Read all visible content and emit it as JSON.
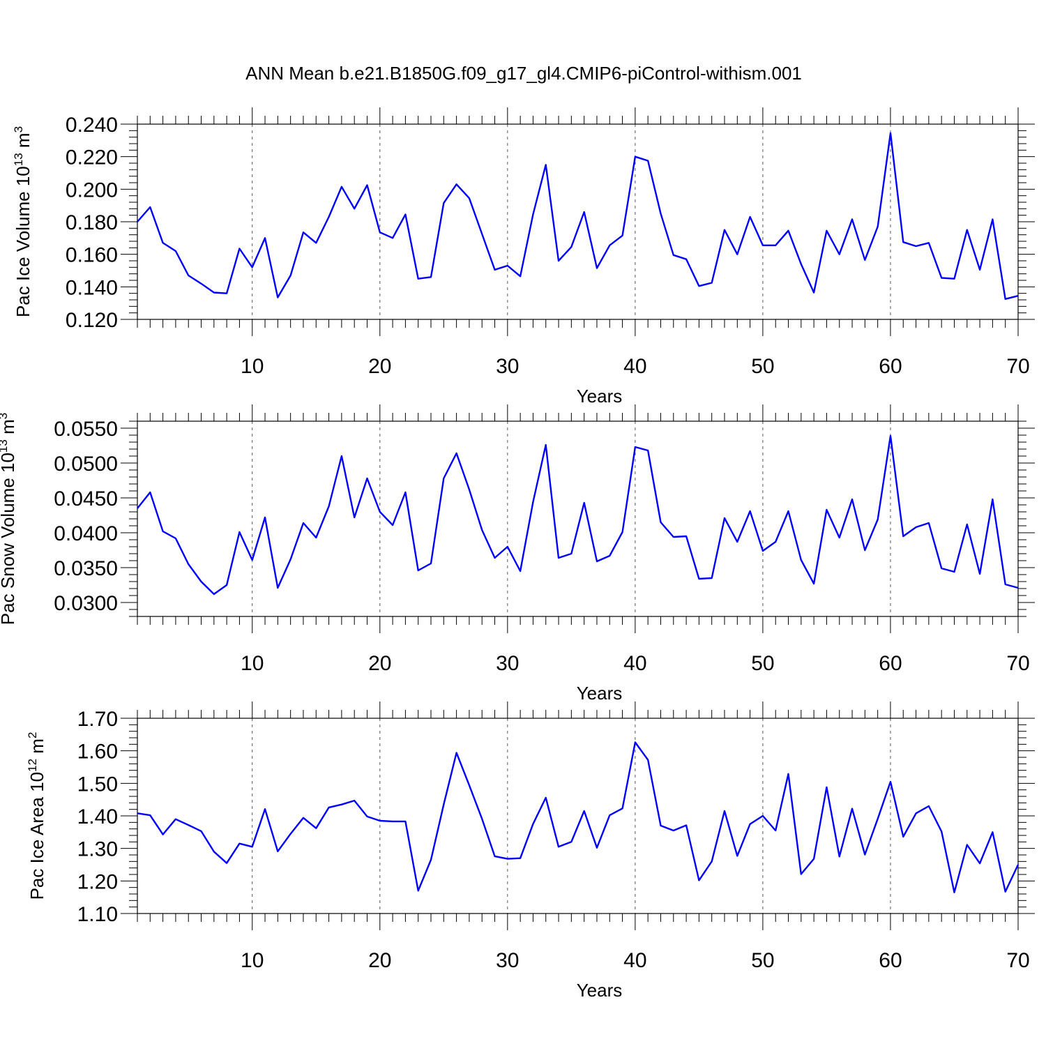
{
  "title": "ANN Mean b.e21.B1850G.f09_g17_gl4.CMIP6-piControl-withism.001",
  "chart_data": [
    {
      "type": "line",
      "ylabel_main": "Pac Ice Volume 10",
      "ylabel_exp": "13",
      "ylabel_unit": "m",
      "ylabel_unit_exp": "3",
      "xlabel": "Years",
      "xlim": [
        1,
        70
      ],
      "ylim": [
        0.12,
        0.24
      ],
      "yticks": [
        0.12,
        0.14,
        0.16,
        0.18,
        0.2,
        0.22,
        0.24
      ],
      "ytick_labels": [
        "0.120",
        "0.140",
        "0.160",
        "0.180",
        "0.200",
        "0.220",
        "0.240"
      ],
      "xticks": [
        10,
        20,
        30,
        40,
        50,
        60,
        70
      ],
      "xtick_labels": [
        "10",
        "20",
        "30",
        "40",
        "50",
        "60",
        "70"
      ],
      "x": [
        1,
        2,
        3,
        4,
        5,
        6,
        7,
        8,
        9,
        10,
        11,
        12,
        13,
        14,
        15,
        16,
        17,
        18,
        19,
        20,
        21,
        22,
        23,
        24,
        25,
        26,
        27,
        28,
        29,
        30,
        31,
        32,
        33,
        34,
        35,
        36,
        37,
        38,
        39,
        40,
        41,
        42,
        43,
        44,
        45,
        46,
        47,
        48,
        49,
        50,
        51,
        52,
        53,
        54,
        55,
        56,
        57,
        58,
        59,
        60,
        61,
        62,
        63,
        64,
        65,
        66,
        67,
        68,
        69,
        70
      ],
      "values": [
        0.18,
        0.189,
        0.167,
        0.162,
        0.147,
        0.142,
        0.1365,
        0.136,
        0.1635,
        0.152,
        0.17,
        0.1335,
        0.147,
        0.1735,
        0.167,
        0.183,
        0.2015,
        0.188,
        0.2025,
        0.1735,
        0.17,
        0.1845,
        0.145,
        0.146,
        0.1915,
        0.203,
        0.1945,
        0.1725,
        0.1505,
        0.153,
        0.1465,
        0.1845,
        0.215,
        0.156,
        0.1645,
        0.186,
        0.1515,
        0.1655,
        0.1715,
        0.22,
        0.2175,
        0.185,
        0.1595,
        0.157,
        0.1405,
        0.1425,
        0.175,
        0.16,
        0.183,
        0.1655,
        0.1655,
        0.1745,
        0.154,
        0.1365,
        0.1745,
        0.16,
        0.1815,
        0.1565,
        0.177,
        0.2345,
        0.1675,
        0.165,
        0.167,
        0.1455,
        0.145,
        0.175,
        0.1505,
        0.1815,
        0.1325,
        0.1345
      ]
    },
    {
      "type": "line",
      "ylabel_main": "Pac Snow Volume 10",
      "ylabel_exp": "13",
      "ylabel_unit": "m",
      "ylabel_unit_exp": "3",
      "xlabel": "Years",
      "xlim": [
        1,
        70
      ],
      "ylim": [
        0.028,
        0.056
      ],
      "yticks": [
        0.03,
        0.035,
        0.04,
        0.045,
        0.05,
        0.055
      ],
      "ytick_labels": [
        "0.0300",
        "0.0350",
        "0.0400",
        "0.0450",
        "0.0500",
        "0.0550"
      ],
      "xticks": [
        10,
        20,
        30,
        40,
        50,
        60,
        70
      ],
      "xtick_labels": [
        "10",
        "20",
        "30",
        "40",
        "50",
        "60",
        "70"
      ],
      "x": [
        1,
        2,
        3,
        4,
        5,
        6,
        7,
        8,
        9,
        10,
        11,
        12,
        13,
        14,
        15,
        16,
        17,
        18,
        19,
        20,
        21,
        22,
        23,
        24,
        25,
        26,
        27,
        28,
        29,
        30,
        31,
        32,
        33,
        34,
        35,
        36,
        37,
        38,
        39,
        40,
        41,
        42,
        43,
        44,
        45,
        46,
        47,
        48,
        49,
        50,
        51,
        52,
        53,
        54,
        55,
        56,
        57,
        58,
        59,
        60,
        61,
        62,
        63,
        64,
        65,
        66,
        67,
        68,
        69,
        70
      ],
      "values": [
        0.0435,
        0.0458,
        0.0402,
        0.0392,
        0.0355,
        0.033,
        0.0312,
        0.0325,
        0.0401,
        0.0361,
        0.0422,
        0.0321,
        0.0362,
        0.0414,
        0.0393,
        0.0438,
        0.051,
        0.0422,
        0.0478,
        0.043,
        0.0411,
        0.0458,
        0.0346,
        0.0356,
        0.0478,
        0.0514,
        0.0462,
        0.0404,
        0.0364,
        0.038,
        0.0345,
        0.0444,
        0.0526,
        0.0364,
        0.037,
        0.0443,
        0.0359,
        0.0367,
        0.0401,
        0.0523,
        0.0518,
        0.0415,
        0.0394,
        0.0395,
        0.0334,
        0.0335,
        0.0421,
        0.0387,
        0.0431,
        0.0374,
        0.0387,
        0.0431,
        0.0361,
        0.0327,
        0.0433,
        0.0393,
        0.0448,
        0.0375,
        0.0419,
        0.0539,
        0.0395,
        0.0408,
        0.0414,
        0.0349,
        0.0344,
        0.0412,
        0.0341,
        0.0448,
        0.0326,
        0.0321
      ]
    },
    {
      "type": "line",
      "ylabel_main": "Pac Ice Area 10",
      "ylabel_exp": "12",
      "ylabel_unit": "m",
      "ylabel_unit_exp": "2",
      "xlabel": "Years",
      "xlim": [
        1,
        70
      ],
      "ylim": [
        1.1,
        1.7
      ],
      "yticks": [
        1.1,
        1.2,
        1.3,
        1.4,
        1.5,
        1.6,
        1.7
      ],
      "ytick_labels": [
        "1.10",
        "1.20",
        "1.30",
        "1.40",
        "1.50",
        "1.60",
        "1.70"
      ],
      "xticks": [
        10,
        20,
        30,
        40,
        50,
        60,
        70
      ],
      "xtick_labels": [
        "10",
        "20",
        "30",
        "40",
        "50",
        "60",
        "70"
      ],
      "x": [
        1,
        2,
        3,
        4,
        5,
        6,
        7,
        8,
        9,
        10,
        11,
        12,
        13,
        14,
        15,
        16,
        17,
        18,
        19,
        20,
        21,
        22,
        23,
        24,
        25,
        26,
        27,
        28,
        29,
        30,
        31,
        32,
        33,
        34,
        35,
        36,
        37,
        38,
        39,
        40,
        41,
        42,
        43,
        44,
        45,
        46,
        47,
        48,
        49,
        50,
        51,
        52,
        53,
        54,
        55,
        56,
        57,
        58,
        59,
        60,
        61,
        62,
        63,
        64,
        65,
        66,
        67,
        68,
        69,
        70
      ],
      "values": [
        1.408,
        1.402,
        1.343,
        1.39,
        1.372,
        1.353,
        1.29,
        1.255,
        1.315,
        1.305,
        1.421,
        1.291,
        1.345,
        1.394,
        1.362,
        1.426,
        1.435,
        1.447,
        1.398,
        1.385,
        1.383,
        1.383,
        1.17,
        1.265,
        1.435,
        1.594,
        1.494,
        1.391,
        1.276,
        1.268,
        1.27,
        1.375,
        1.456,
        1.305,
        1.32,
        1.415,
        1.302,
        1.402,
        1.423,
        1.626,
        1.572,
        1.37,
        1.355,
        1.371,
        1.202,
        1.26,
        1.415,
        1.277,
        1.375,
        1.4,
        1.355,
        1.529,
        1.221,
        1.268,
        1.488,
        1.275,
        1.422,
        1.281,
        1.391,
        1.505,
        1.336,
        1.408,
        1.43,
        1.352,
        1.165,
        1.311,
        1.254,
        1.35,
        1.167,
        1.25
      ]
    }
  ]
}
